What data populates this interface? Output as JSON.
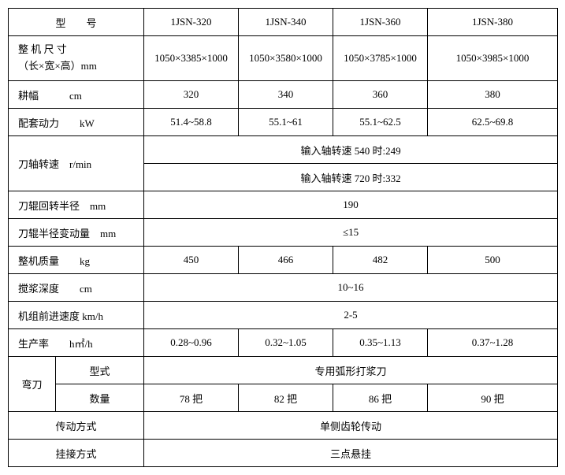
{
  "header": {
    "model_label": "型  号",
    "m1": "1JSN-320",
    "m2": "1JSN-340",
    "m3": "1JSN-360",
    "m4": "1JSN-380"
  },
  "dims": {
    "label": "整 机 尺 寸<br>（长×宽×高）mm",
    "label_l1": "整 机 尺 寸",
    "label_l2": "（长×宽×高）mm",
    "v1": "1050×3385×1000",
    "v2": "1050×3580×1000",
    "v3": "1050×3785×1000",
    "v4": "1050×3985×1000"
  },
  "width": {
    "label": "耕幅   cm",
    "v1": "320",
    "v2": "340",
    "v3": "360",
    "v4": "380"
  },
  "power": {
    "label": "配套动力  kW",
    "v1": "51.4~58.8",
    "v2": "55.1~61",
    "v3": "55.1~62.5",
    "v4": "62.5~69.8"
  },
  "shaft_speed": {
    "label": "刀轴转速 r/min",
    "r1": "输入轴转速 540 时:249",
    "r2": "输入轴转速 720 时:332"
  },
  "radius": {
    "label": "刀辊回转半径 mm",
    "v": "190"
  },
  "variation": {
    "label": "刀辊半径变动量 mm",
    "v": "≤15"
  },
  "mass": {
    "label": "整机质量  kg",
    "v1": "450",
    "v2": "466",
    "v3": "482",
    "v4": "500"
  },
  "depth": {
    "label": "搅浆深度  cm",
    "v": "10~16"
  },
  "forward": {
    "label": "机组前进速度 km/h",
    "v": "2-5"
  },
  "productivity": {
    "label": "生产率  h㎡/h",
    "v1": "0.28~0.96",
    "v2": "0.32~1.05",
    "v3": "0.35~1.13",
    "v4": "0.37~1.28"
  },
  "blade": {
    "group": "弯刀",
    "type_label": "型式",
    "type_val": "专用弧形打浆刀",
    "qty_label": "数量",
    "q1": "78 把",
    "q2": "82 把",
    "q3": "86 把",
    "q4": "90 把"
  },
  "drive": {
    "label": "传动方式",
    "v": "单侧齿轮传动"
  },
  "hitch": {
    "label": "挂接方式",
    "v": "三点悬挂"
  }
}
